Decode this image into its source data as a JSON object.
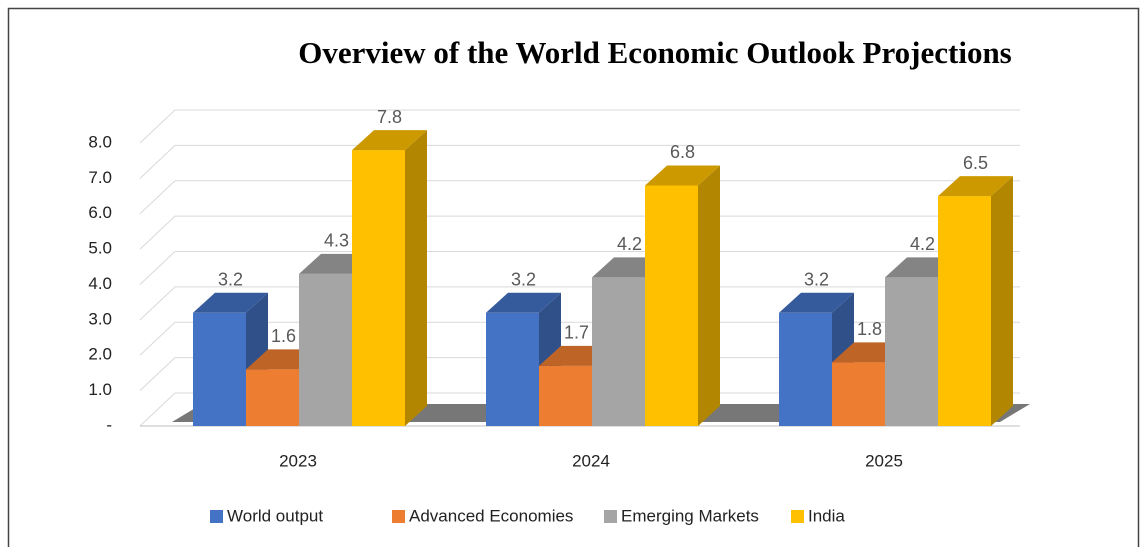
{
  "chart_data": {
    "type": "bar3d",
    "title": "Overview of the World Economic Outlook Projections",
    "categories": [
      "2023",
      "2024",
      "2025"
    ],
    "series": [
      {
        "name": "World output",
        "color": "#4472c4",
        "values": [
          3.2,
          3.2,
          3.2
        ]
      },
      {
        "name": "Advanced Economies",
        "color": "#ed7d31",
        "values": [
          1.6,
          1.7,
          1.8
        ]
      },
      {
        "name": "Emerging Markets",
        "color": "#a5a5a5",
        "values": [
          4.3,
          4.2,
          4.2
        ]
      },
      {
        "name": "India",
        "color": "#ffc000",
        "values": [
          7.8,
          6.8,
          6.5
        ]
      }
    ],
    "ylim": [
      0,
      8
    ],
    "yticks": [
      {
        "value": 0,
        "label": "-"
      },
      {
        "value": 1,
        "label": "1.0"
      },
      {
        "value": 2,
        "label": "2.0"
      },
      {
        "value": 3,
        "label": "3.0"
      },
      {
        "value": 4,
        "label": "4.0"
      },
      {
        "value": 5,
        "label": "5.0"
      },
      {
        "value": 6,
        "label": "6.0"
      },
      {
        "value": 7,
        "label": "7.0"
      },
      {
        "value": 8,
        "label": "8.0"
      }
    ],
    "grid": true,
    "legend": "bottom"
  }
}
